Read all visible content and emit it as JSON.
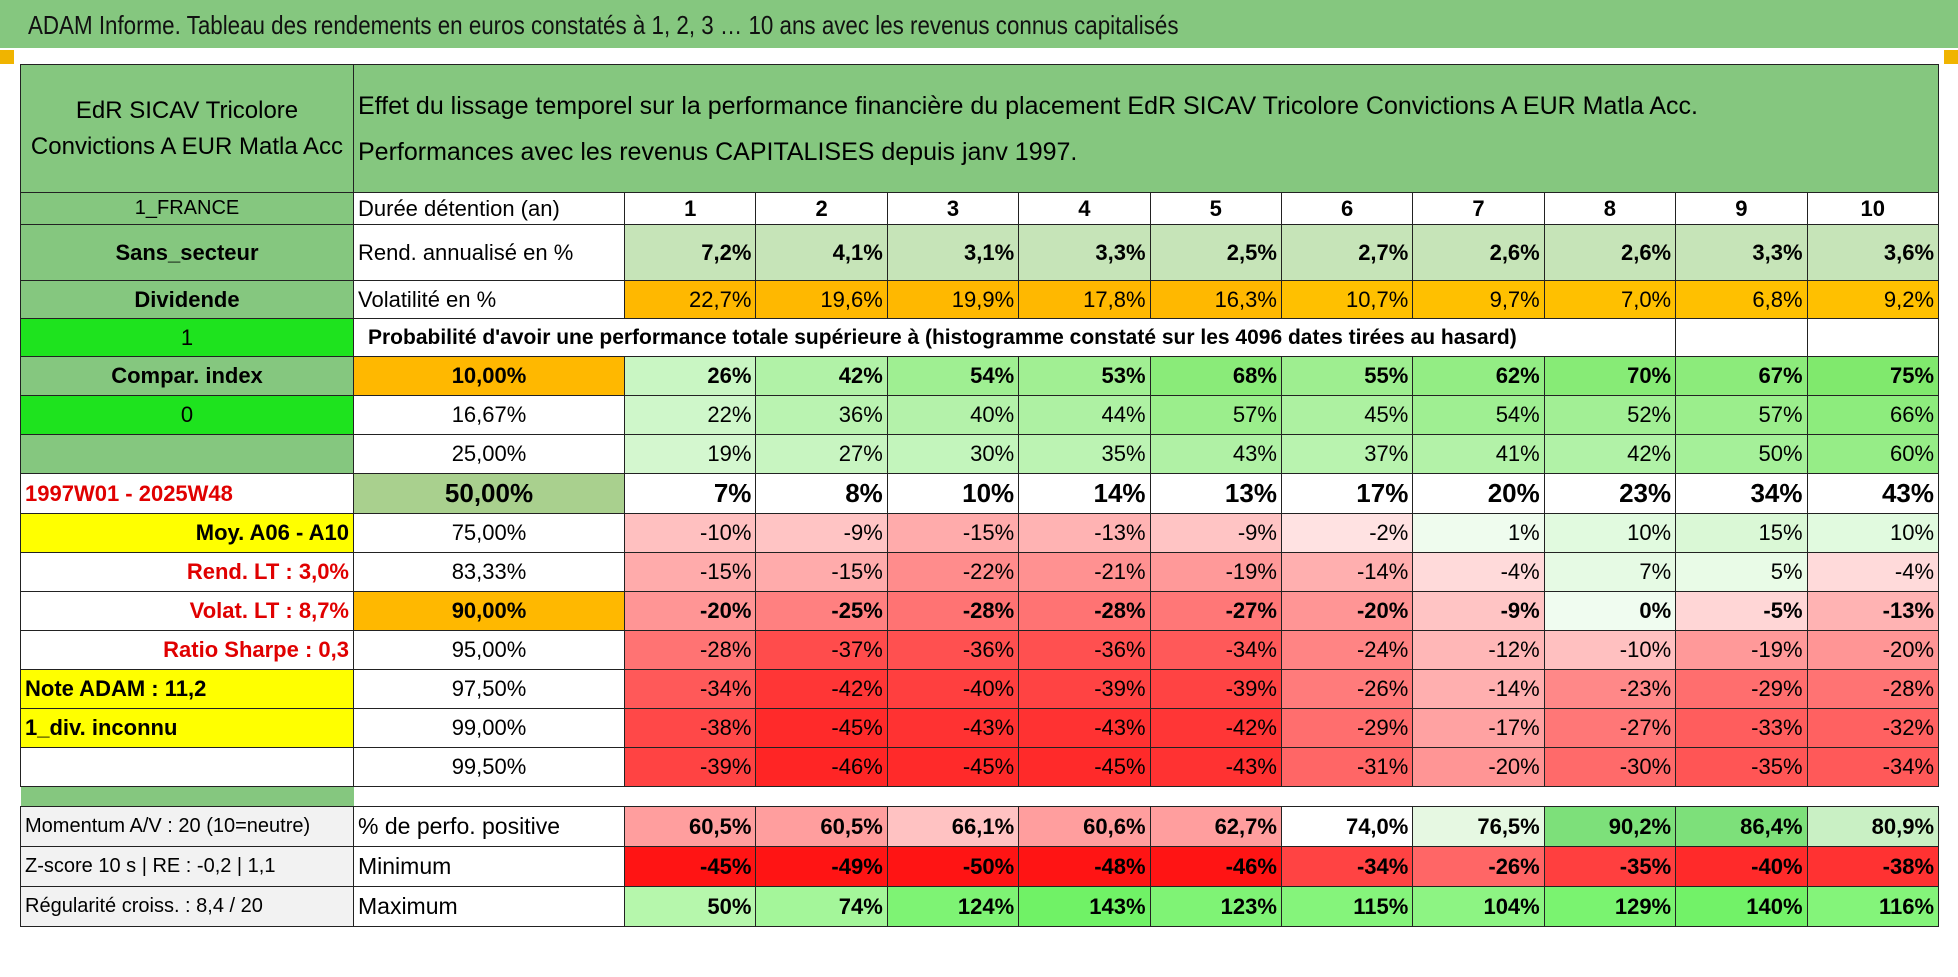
{
  "title": "ADAM Informe. Tableau des rendements en euros constatés à 1, 2, 3 … 10 ans avec les revenus connus capitalisés",
  "fund_name": "EdR SICAV Tricolore Convictions A EUR Matla Acc",
  "header_line1": "Effet du lissage temporel sur la performance financière du placement EdR SICAV Tricolore Convictions A EUR Matla Acc.",
  "header_line2": "Performances avec les revenus CAPITALISES depuis janv 1997.",
  "side": {
    "country": "1_FRANCE",
    "sector": "Sans_secteur",
    "dividend": "Dividende",
    "one": "1",
    "compar": "Compar. index",
    "zero": "0",
    "period": "1997W01 - 2025W48",
    "moy": "Moy. A06 - A10",
    "rend_lt": "Rend. LT :   3,0%",
    "volat_lt": "Volat. LT :   8,7%",
    "sharpe": "Ratio Sharpe :    0,3",
    "note": "Note ADAM : 11,2",
    "div_inconnu": "1_div. inconnu"
  },
  "durations_label": "Durée détention (an)",
  "durations": [
    "1",
    "2",
    "3",
    "4",
    "5",
    "6",
    "7",
    "8",
    "9",
    "10"
  ],
  "rend_label": "Rend. annualisé en %",
  "rend": [
    "7,2%",
    "4,1%",
    "3,1%",
    "3,3%",
    "2,5%",
    "2,7%",
    "2,6%",
    "2,6%",
    "3,3%",
    "3,6%"
  ],
  "vol_label": "Volatilité en %",
  "vol": [
    "22,7%",
    "19,6%",
    "19,9%",
    "17,8%",
    "16,3%",
    "10,7%",
    "9,7%",
    "7,0%",
    "6,8%",
    "9,2%"
  ],
  "prob_header": "Probabilité d'avoir une performance totale supérieure à (histogramme constaté sur les 4096 dates tirées au hasard)",
  "prob_rows": [
    {
      "threshold": "10,00%",
      "values": [
        "26%",
        "42%",
        "54%",
        "53%",
        "68%",
        "55%",
        "62%",
        "70%",
        "67%",
        "75%"
      ]
    },
    {
      "threshold": "16,67%",
      "values": [
        "22%",
        "36%",
        "40%",
        "44%",
        "57%",
        "45%",
        "54%",
        "52%",
        "57%",
        "66%"
      ]
    },
    {
      "threshold": "25,00%",
      "values": [
        "19%",
        "27%",
        "30%",
        "35%",
        "43%",
        "37%",
        "41%",
        "42%",
        "50%",
        "60%"
      ]
    },
    {
      "threshold": "50,00%",
      "values": [
        "7%",
        "8%",
        "10%",
        "14%",
        "13%",
        "17%",
        "20%",
        "23%",
        "34%",
        "43%"
      ]
    },
    {
      "threshold": "75,00%",
      "values": [
        "-10%",
        "-9%",
        "-15%",
        "-13%",
        "-9%",
        "-2%",
        "1%",
        "10%",
        "15%",
        "10%"
      ]
    },
    {
      "threshold": "83,33%",
      "values": [
        "-15%",
        "-15%",
        "-22%",
        "-21%",
        "-19%",
        "-14%",
        "-4%",
        "7%",
        "5%",
        "-4%"
      ]
    },
    {
      "threshold": "90,00%",
      "values": [
        "-20%",
        "-25%",
        "-28%",
        "-28%",
        "-27%",
        "-20%",
        "-9%",
        "0%",
        "-5%",
        "-13%"
      ]
    },
    {
      "threshold": "95,00%",
      "values": [
        "-28%",
        "-37%",
        "-36%",
        "-36%",
        "-34%",
        "-24%",
        "-12%",
        "-10%",
        "-19%",
        "-20%"
      ]
    },
    {
      "threshold": "97,50%",
      "values": [
        "-34%",
        "-42%",
        "-40%",
        "-39%",
        "-39%",
        "-26%",
        "-14%",
        "-23%",
        "-29%",
        "-28%"
      ]
    },
    {
      "threshold": "99,00%",
      "values": [
        "-38%",
        "-45%",
        "-43%",
        "-43%",
        "-42%",
        "-29%",
        "-17%",
        "-27%",
        "-33%",
        "-32%"
      ]
    },
    {
      "threshold": "99,50%",
      "values": [
        "-39%",
        "-46%",
        "-45%",
        "-45%",
        "-43%",
        "-31%",
        "-20%",
        "-30%",
        "-35%",
        "-34%"
      ]
    }
  ],
  "bottom": {
    "momentum": "Momentum A/V : 20 (10=neutre)",
    "zscore": "Z-score 10 s | RE : -0,2 | 1,1",
    "regularite": "Régularité croiss. : 8,4 / 20",
    "pos_label": "% de perfo. positive",
    "pos": [
      "60,5%",
      "60,5%",
      "66,1%",
      "60,6%",
      "62,7%",
      "74,0%",
      "76,5%",
      "90,2%",
      "86,4%",
      "80,9%"
    ],
    "min_label": "Minimum",
    "min": [
      "-45%",
      "-49%",
      "-50%",
      "-48%",
      "-46%",
      "-34%",
      "-26%",
      "-35%",
      "-40%",
      "-38%"
    ],
    "max_label": "Maximum",
    "max": [
      "50%",
      "74%",
      "124%",
      "143%",
      "123%",
      "115%",
      "104%",
      "129%",
      "140%",
      "116%"
    ]
  },
  "colors": {
    "header_green": "#85c77f",
    "bright_green": "#1ee31e",
    "yellow": "#ffff00",
    "orange": "#ffb800",
    "red_text": "#e00000"
  }
}
